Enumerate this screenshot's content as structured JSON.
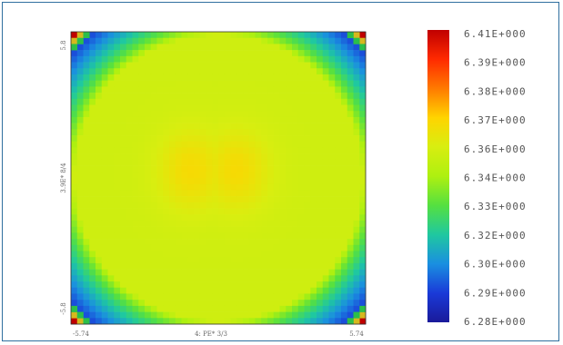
{
  "chart_data": {
    "type": "heatmap",
    "title": "",
    "x_tick_labels": {
      "left": "-5.74",
      "center": "4: PE* 3/3",
      "right": "5.74"
    },
    "y_tick_labels": {
      "top": "5.8",
      "middle": "3.9E* 8/4",
      "bottom": "-5.8"
    },
    "grid_resolution": [
      48,
      48
    ],
    "colorbar": {
      "labels": [
        "6.41E+000",
        "6.39E+000",
        "6.38E+000",
        "6.37E+000",
        "6.36E+000",
        "6.34E+000",
        "6.33E+000",
        "6.32E+000",
        "6.30E+000",
        "6.29E+000",
        "6.28E+000"
      ],
      "colors_top_to_bottom": [
        "#c00000",
        "#ff2a00",
        "#ff7a00",
        "#ffd400",
        "#d8ee10",
        "#aef010",
        "#55e040",
        "#1fc8a0",
        "#1a8fe0",
        "#1a3ad8",
        "#1a1a9a"
      ]
    },
    "field": {
      "min": 6.28,
      "max": 6.41,
      "plateau_value": 6.355,
      "center_peak_value": 6.368,
      "corner_value": 6.282,
      "note_corner_pixels": [
        "#2bbf4a",
        "#d6b81e",
        "#c00000"
      ]
    }
  }
}
